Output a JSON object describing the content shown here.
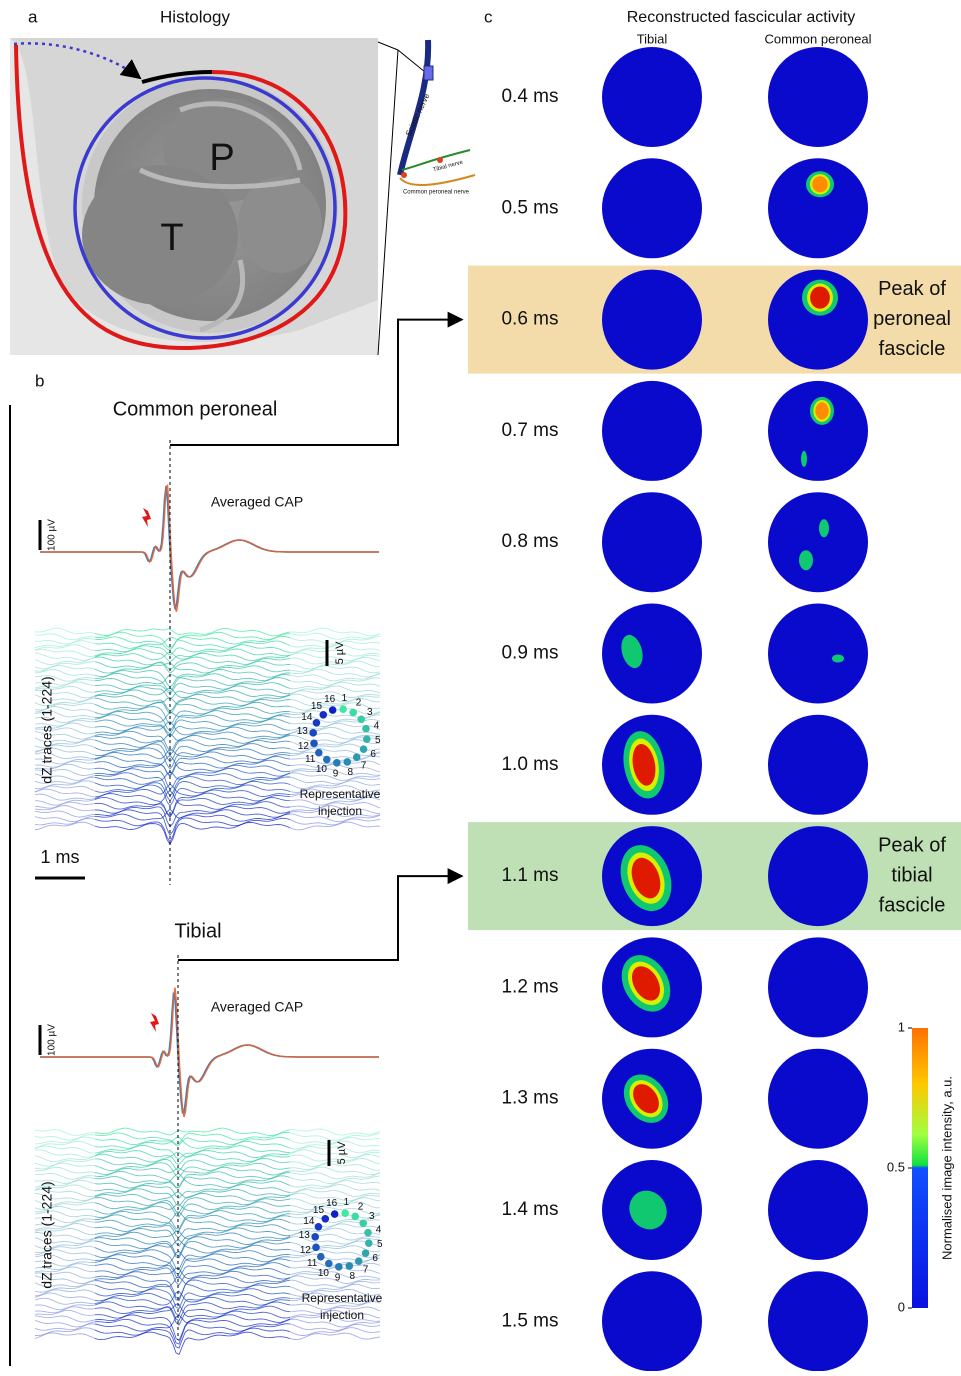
{
  "panel_a": {
    "label": "a",
    "title": "Histology",
    "fascicle_labels": [
      "P",
      "T"
    ],
    "nerve_labels": [
      "Sciatic nerve",
      "Tibial nerve",
      "Common peroneal nerve"
    ]
  },
  "panel_b": {
    "label": "b",
    "time_scale": "1 ms",
    "sections": [
      {
        "title": "Common peroneal",
        "cap_label": "Averaged CAP",
        "cap_scale": "100 µV",
        "dz_scale": "5 µV",
        "dz_label": "dZ traces (1-224)",
        "injection_label": [
          "Representative",
          "injection"
        ]
      },
      {
        "title": "Tibial",
        "cap_label": "Averaged CAP",
        "cap_scale": "100 µV",
        "dz_scale": "5 µV",
        "dz_label": "dZ traces (1-224)",
        "injection_label": [
          "Representative",
          "injection"
        ]
      }
    ],
    "electrodes": [
      "1",
      "2",
      "3",
      "4",
      "5",
      "6",
      "7",
      "8",
      "9",
      "10",
      "11",
      "12",
      "13",
      "14",
      "15",
      "16"
    ]
  },
  "panel_c": {
    "label": "c",
    "title": "Reconstructed fascicular activity",
    "columns": [
      "Tibial",
      "Common peroneal"
    ],
    "rows": [
      {
        "time": "0.4 ms"
      },
      {
        "time": "0.5 ms"
      },
      {
        "time": "0.6 ms",
        "note": [
          "Peak of",
          "peroneal",
          "fascicle"
        ]
      },
      {
        "time": "0.7 ms"
      },
      {
        "time": "0.8 ms"
      },
      {
        "time": "0.9 ms"
      },
      {
        "time": "1.0 ms"
      },
      {
        "time": "1.1 ms",
        "note": [
          "Peak of",
          "tibial",
          "fascicle"
        ]
      },
      {
        "time": "1.2 ms"
      },
      {
        "time": "1.3 ms"
      },
      {
        "time": "1.4 ms"
      },
      {
        "time": "1.5 ms"
      }
    ],
    "colorbar": {
      "label": "Normalised image intensity, a.u.",
      "ticks": [
        0,
        0.5,
        1
      ]
    }
  }
}
